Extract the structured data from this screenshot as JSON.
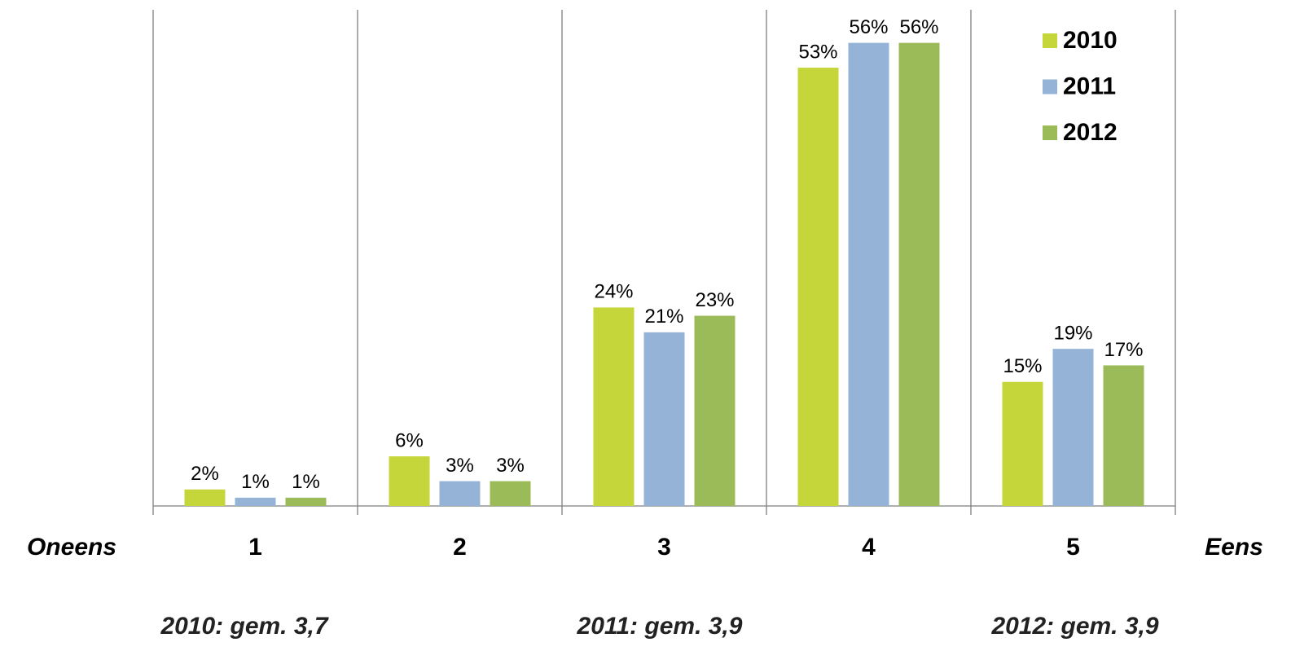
{
  "chart_data": {
    "type": "bar",
    "categories": [
      "1",
      "2",
      "3",
      "4",
      "5"
    ],
    "axis_left_label": "Oneens",
    "axis_right_label": "Eens",
    "notes": [
      "2010: gem. 3,7",
      "2011: gem. 3,9",
      "2012: gem. 3,9"
    ],
    "series": [
      {
        "name": "2010",
        "color": "#c5d63a",
        "values": [
          2,
          6,
          24,
          53,
          15
        ],
        "value_labels": [
          "2%",
          "6%",
          "24%",
          "53%",
          "15%"
        ]
      },
      {
        "name": "2011",
        "color": "#95b3d7",
        "values": [
          1,
          3,
          21,
          56,
          19
        ],
        "value_labels": [
          "1%",
          "3%",
          "21%",
          "56%",
          "19%"
        ]
      },
      {
        "name": "2012",
        "color": "#9bbb59",
        "values": [
          1,
          3,
          23,
          56,
          17
        ],
        "value_labels": [
          "1%",
          "3%",
          "23%",
          "56%",
          "17%"
        ]
      }
    ],
    "ylim": [
      0,
      60
    ],
    "legend": "top-right",
    "grid": false
  }
}
